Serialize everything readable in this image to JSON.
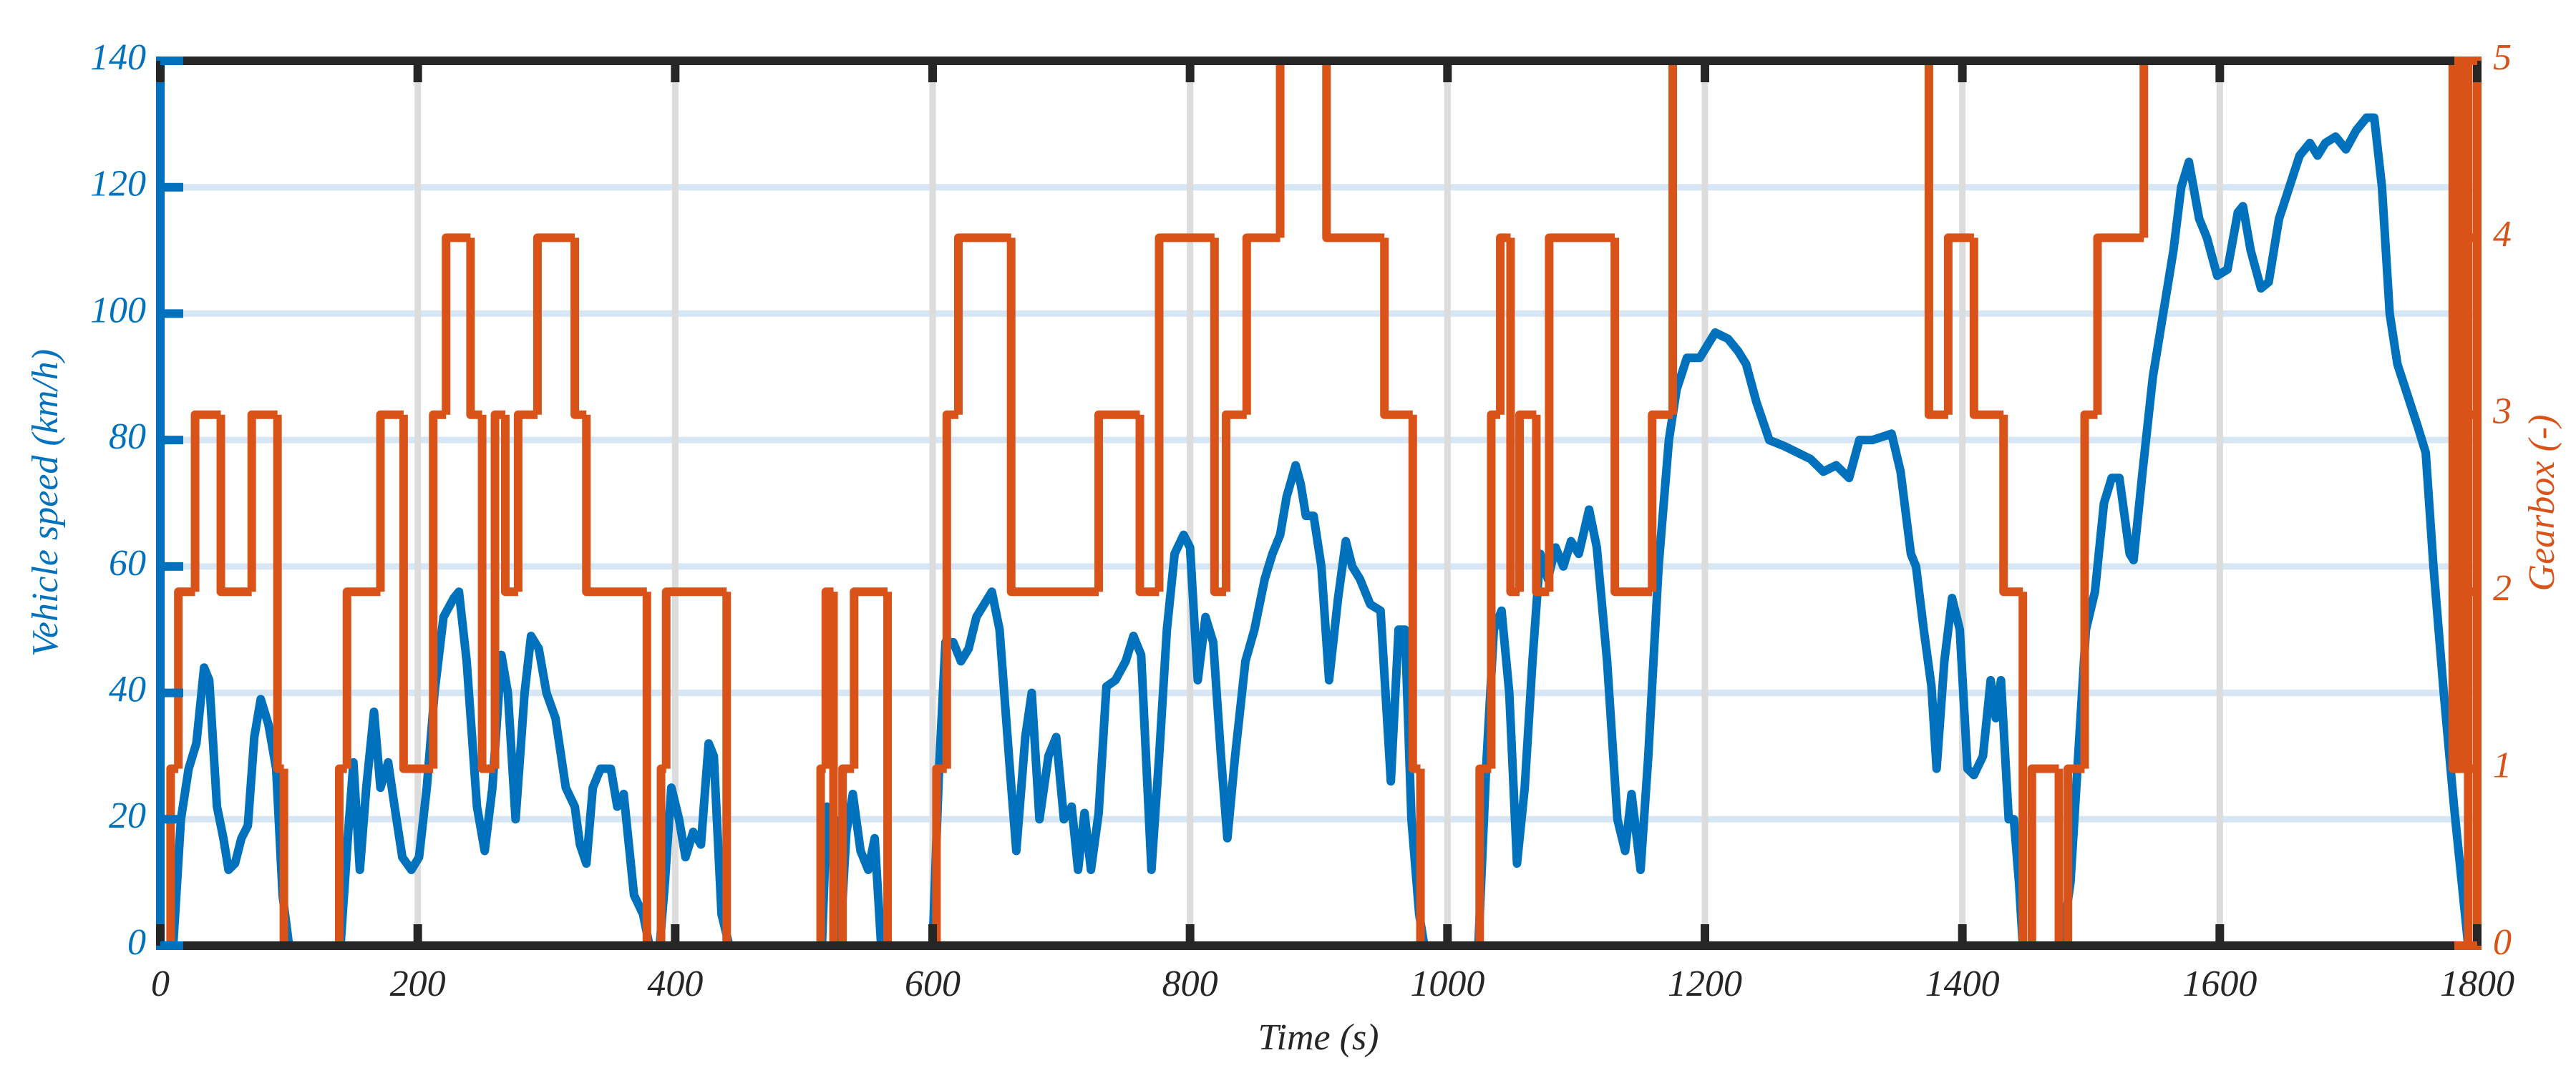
{
  "chart_data": {
    "type": "line",
    "xlabel": "Time (s)",
    "ylabel": "Vehicle speed (km/h)",
    "y2label": "Gearbox (-)",
    "xlim": [
      0,
      1800
    ],
    "xticks": [
      0,
      200,
      400,
      600,
      800,
      1000,
      1200,
      1400,
      1600,
      1800
    ],
    "ylim": [
      0,
      140
    ],
    "yticks": [
      0,
      20,
      40,
      60,
      80,
      100,
      120,
      140
    ],
    "y2lim": [
      0,
      5
    ],
    "y2ticks": [
      0,
      1,
      2,
      3,
      4,
      5
    ],
    "grid": true,
    "xgrid_color": "#dcdcdc",
    "ygrid_color": "#d6e6f4",
    "series": [
      {
        "name": "Vehicle speed",
        "color": "#0072BD",
        "axis": "y",
        "x": [
          0,
          10,
          16,
          22,
          28,
          34,
          38,
          44,
          49,
          53,
          58,
          63,
          68,
          73,
          78,
          84,
          90,
          95,
          100,
          140,
          146,
          150,
          155,
          160,
          166,
          171,
          177,
          182,
          188,
          195,
          201,
          207,
          213,
          220,
          228,
          232,
          238,
          246,
          252,
          258,
          265,
          270,
          276,
          283,
          288,
          294,
          300,
          307,
          315,
          322,
          326,
          331,
          336,
          342,
          350,
          355,
          360,
          368,
          375,
          380,
          388,
          392,
          397,
          403,
          408,
          414,
          420,
          426,
          430,
          436,
          442,
          514,
          518,
          524,
          528,
          533,
          538,
          544,
          550,
          555,
          560,
          600,
          605,
          610,
          616,
          622,
          628,
          634,
          640,
          646,
          652,
          660,
          665,
          672,
          677,
          683,
          690,
          696,
          702,
          708,
          713,
          718,
          723,
          729,
          735,
          742,
          750,
          756,
          762,
          770,
          776,
          782,
          788,
          795,
          800,
          806,
          812,
          818,
          824,
          829,
          835,
          843,
          850,
          858,
          864,
          870,
          875,
          882,
          886,
          890,
          896,
          902,
          908,
          915,
          921,
          926,
          932,
          940,
          948,
          956,
          962,
          967,
          972,
          978,
          982,
          1024,
          1030,
          1036,
          1042,
          1048,
          1054,
          1060,
          1066,
          1072,
          1078,
          1084,
          1090,
          1096,
          1102,
          1110,
          1116,
          1124,
          1132,
          1138,
          1143,
          1150,
          1156,
          1164,
          1172,
          1178,
          1186,
          1196,
          1208,
          1218,
          1226,
          1232,
          1240,
          1250,
          1262,
          1272,
          1282,
          1292,
          1302,
          1312,
          1320,
          1330,
          1345,
          1352,
          1360,
          1364,
          1370,
          1376,
          1380,
          1386,
          1392,
          1398,
          1404,
          1409,
          1416,
          1422,
          1426,
          1430,
          1436,
          1440,
          1444,
          1447,
          1477,
          1484,
          1490,
          1496,
          1503,
          1510,
          1516,
          1522,
          1530,
          1533,
          1540,
          1548,
          1556,
          1564,
          1570,
          1576,
          1584,
          1590,
          1598,
          1606,
          1614,
          1618,
          1624,
          1632,
          1638,
          1646,
          1654,
          1662,
          1670,
          1676,
          1682,
          1690,
          1698,
          1706,
          1714,
          1720,
          1726,
          1732,
          1738,
          1746,
          1754,
          1760,
          1766,
          1774,
          1782,
          1788,
          1793
        ],
        "values": [
          0,
          0,
          20,
          28,
          32,
          44,
          42,
          22,
          17,
          12,
          13,
          17,
          19,
          33,
          39,
          35,
          28,
          8,
          0,
          0,
          18,
          29,
          12,
          25,
          37,
          25,
          29,
          22,
          14,
          12,
          14,
          25,
          40,
          52,
          55,
          56,
          45,
          22,
          15,
          25,
          46,
          40,
          20,
          40,
          49,
          47,
          40,
          36,
          25,
          22,
          16,
          13,
          25,
          28,
          28,
          22,
          24,
          8,
          5,
          0,
          0,
          10,
          25,
          20,
          14,
          18,
          16,
          32,
          30,
          5,
          0,
          0,
          22,
          20,
          0,
          18,
          24,
          15,
          12,
          17,
          0,
          0,
          28,
          48,
          48,
          45,
          47,
          52,
          54,
          56,
          50,
          28,
          15,
          33,
          40,
          20,
          30,
          33,
          20,
          22,
          12,
          21,
          12,
          21,
          41,
          42,
          45,
          49,
          46,
          12,
          30,
          50,
          62,
          65,
          63,
          42,
          52,
          48,
          30,
          17,
          30,
          45,
          50,
          58,
          62,
          65,
          71,
          76,
          73,
          68,
          68,
          60,
          42,
          55,
          64,
          60,
          58,
          54,
          53,
          26,
          50,
          50,
          20,
          5,
          0,
          0,
          28,
          50,
          53,
          40,
          13,
          25,
          45,
          62,
          58,
          63,
          60,
          64,
          62,
          69,
          63,
          45,
          20,
          15,
          24,
          12,
          30,
          60,
          80,
          88,
          93,
          93,
          97,
          96,
          94,
          92,
          86,
          80,
          79,
          78,
          77,
          75,
          76,
          74,
          80,
          80,
          81,
          75,
          62,
          60,
          50,
          41,
          28,
          45,
          55,
          50,
          28,
          27,
          30,
          42,
          36,
          42,
          20,
          20,
          10,
          0,
          0,
          10,
          30,
          50,
          56,
          70,
          74,
          74,
          62,
          61,
          75,
          90,
          100,
          110,
          120,
          124,
          115,
          112,
          106,
          107,
          116,
          117,
          110,
          104,
          105,
          115,
          120,
          125,
          127,
          125,
          127,
          128,
          126,
          129,
          131,
          131,
          120,
          100,
          92,
          87,
          82,
          78,
          60,
          40,
          22,
          10,
          0
        ]
      },
      {
        "name": "Gearbox",
        "color": "#D95319",
        "axis": "y2",
        "drawstyle": "steps-post",
        "x": [
          0,
          8,
          14,
          27,
          47,
          71,
          91,
          96,
          139,
          145,
          171,
          189,
          212,
          222,
          241,
          250,
          260,
          268,
          278,
          293,
          322,
          331,
          378,
          389,
          393,
          440,
          513,
          517,
          523,
          530,
          539,
          565,
          603,
          611,
          620,
          661,
          729,
          761,
          776,
          819,
          828,
          844,
          870,
          906,
          951,
          973,
          979,
          1025,
          1034,
          1041,
          1049,
          1056,
          1069,
          1079,
          1130,
          1159,
          1175,
          1374,
          1389,
          1409,
          1432,
          1447,
          1454,
          1475,
          1482,
          1495,
          1505,
          1541,
          1781,
          1787,
          1793
        ],
        "values": [
          0,
          1,
          2,
          3,
          2,
          3,
          1,
          0,
          1,
          2,
          3,
          1,
          3,
          4,
          3,
          1,
          3,
          2,
          3,
          4,
          3,
          2,
          0,
          1,
          2,
          0,
          1,
          2,
          0,
          1,
          2,
          0,
          1,
          3,
          4,
          2,
          3,
          2,
          4,
          2,
          3,
          4,
          5,
          4,
          3,
          1,
          0,
          1,
          3,
          4,
          2,
          3,
          2,
          4,
          2,
          3,
          5,
          3,
          4,
          3,
          2,
          0,
          1,
          0,
          1,
          3,
          4,
          5,
          1,
          5,
          0
        ]
      }
    ]
  }
}
